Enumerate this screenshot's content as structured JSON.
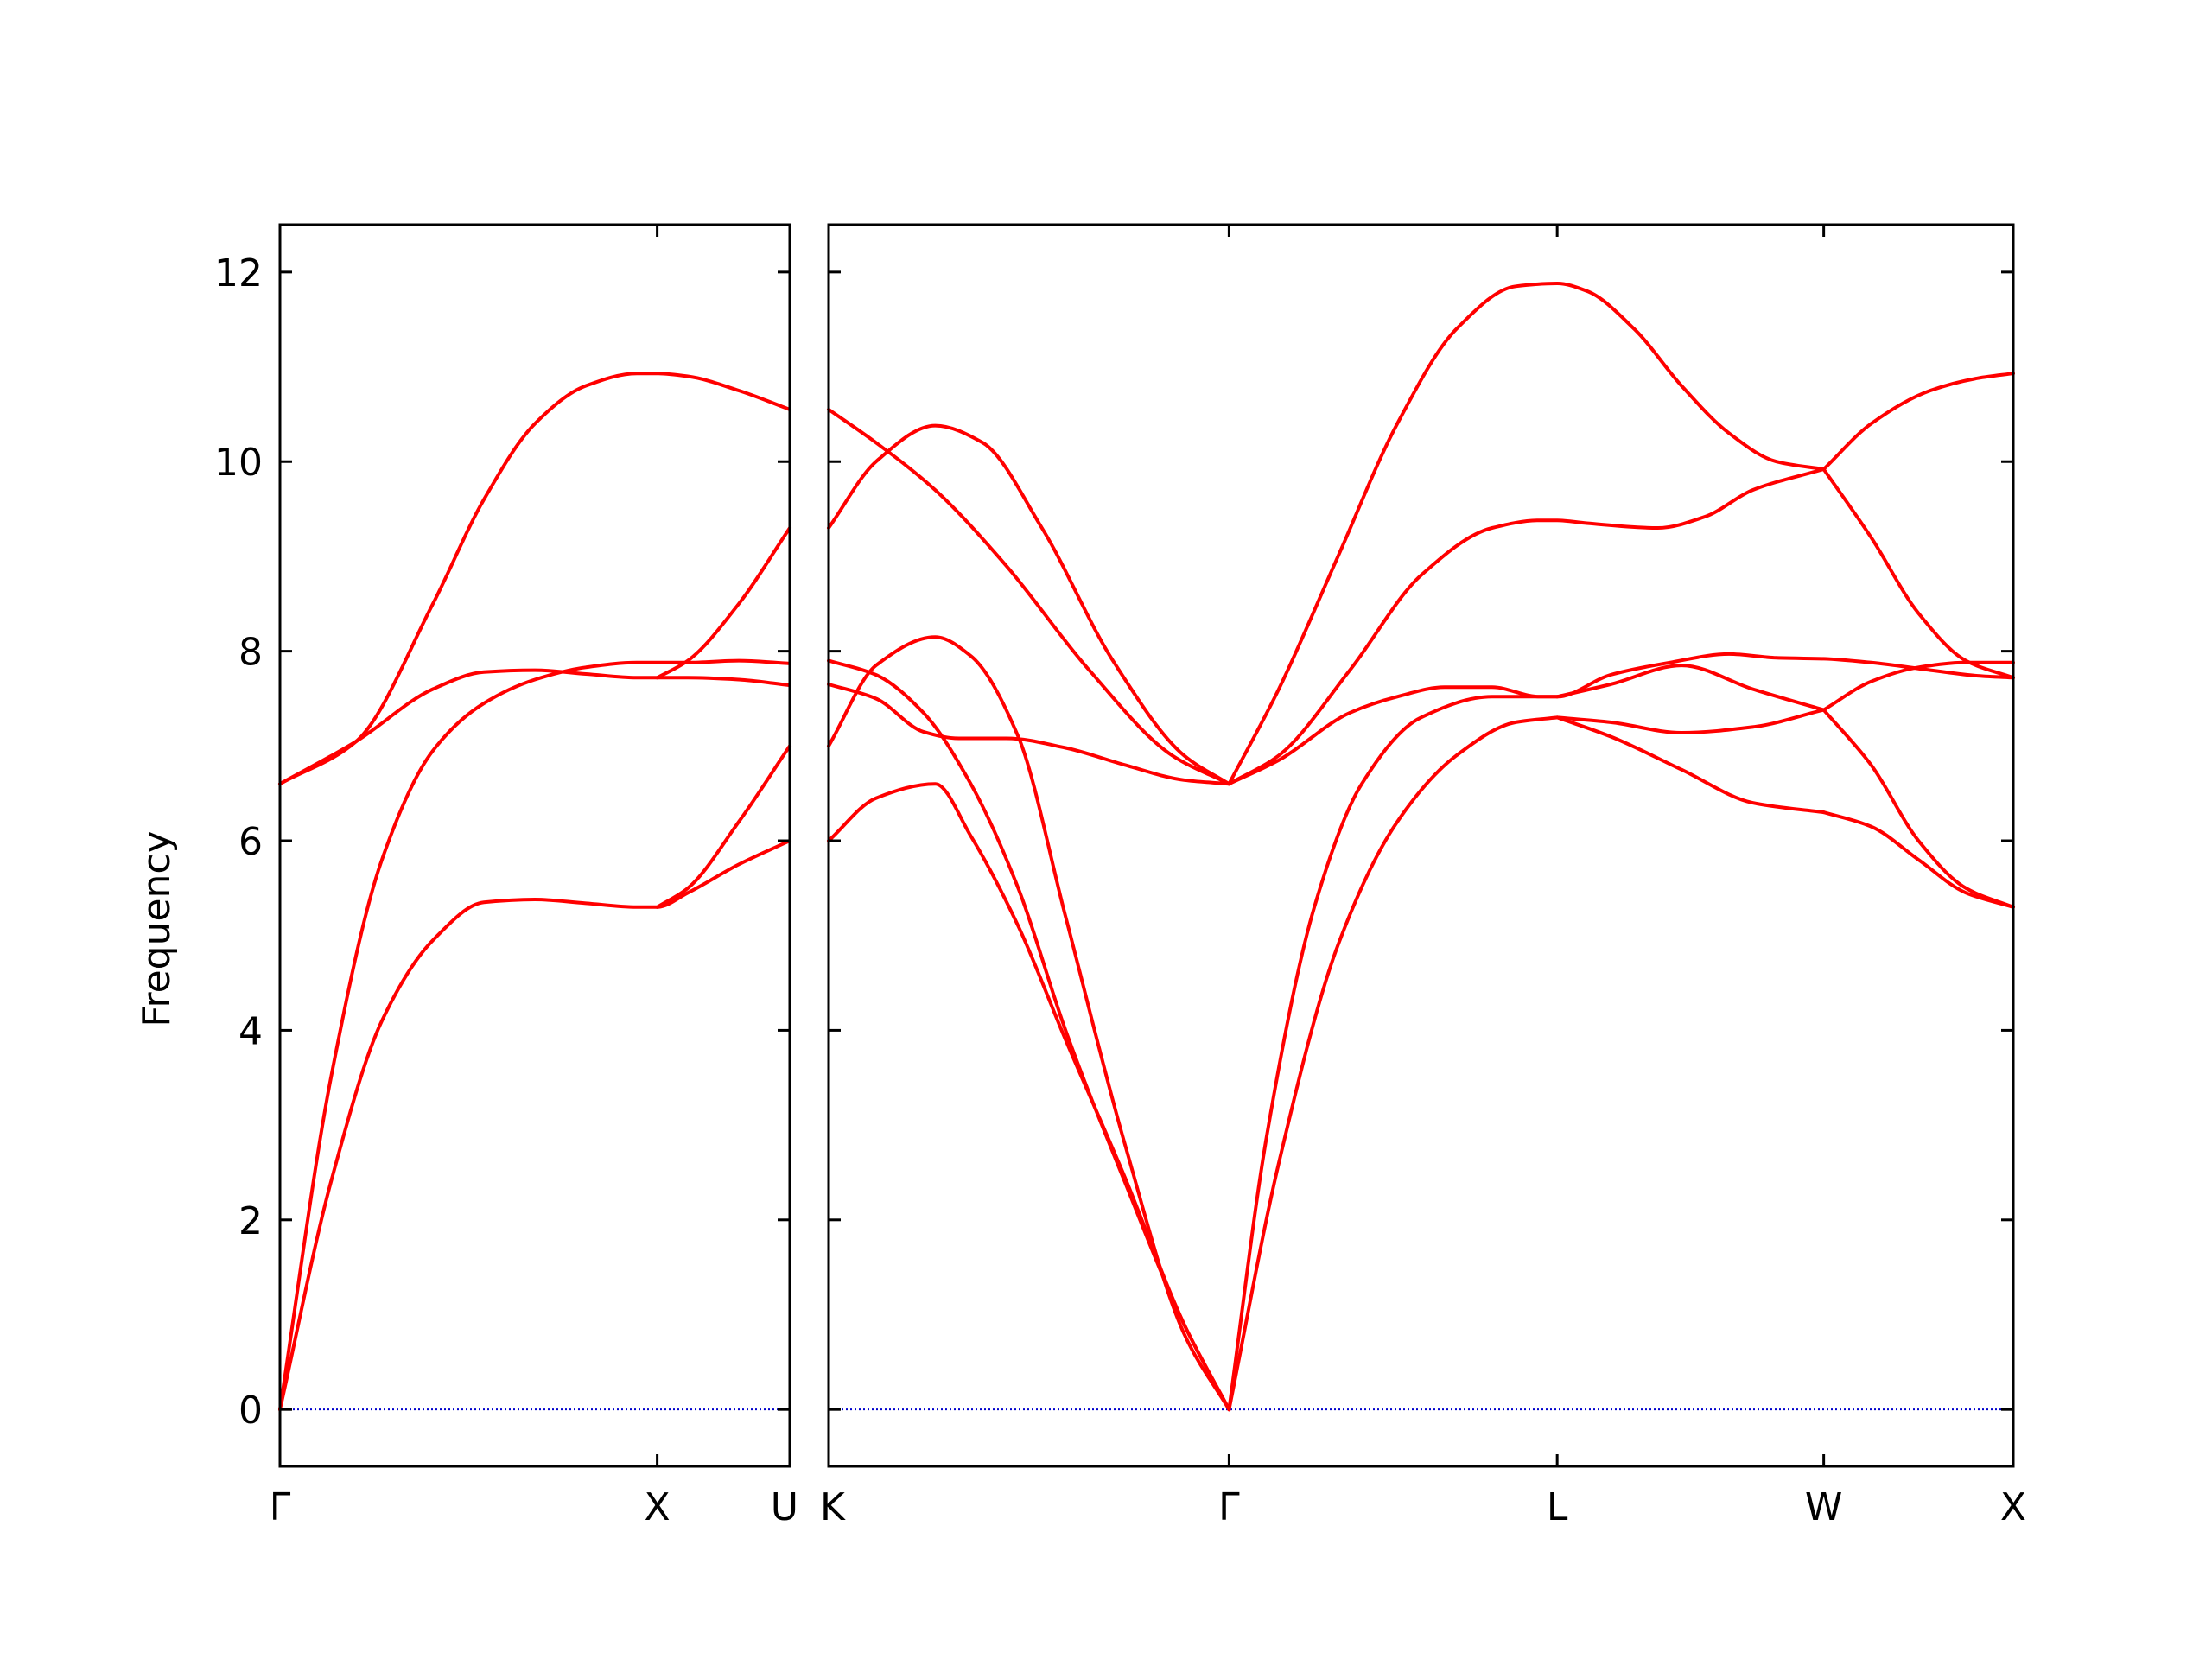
{
  "chart_data": {
    "type": "line",
    "title": "",
    "ylabel": "Frequency",
    "xlabel": "",
    "ylim": [
      -0.6,
      12.5
    ],
    "yticks": [
      0,
      2,
      4,
      6,
      8,
      10,
      12
    ],
    "ytick_labels": [
      "0",
      "2",
      "4",
      "6",
      "8",
      "10",
      "12"
    ],
    "grid": false,
    "line_color": "#ff0000",
    "zero_line_color": "#0000cc",
    "panels": [
      {
        "xlim": [
          0,
          1
        ],
        "ticks": [
          {
            "x": 0,
            "label": "Γ"
          },
          {
            "x": 0.74,
            "label": "X"
          },
          {
            "x": 1,
            "label": "U"
          }
        ],
        "branches": [
          {
            "x": [
              0,
              0.15,
              0.3,
              0.4,
              0.5,
              0.6,
              0.7,
              0.74,
              0.8,
              0.9,
              1
            ],
            "y": [
              6.6,
              7.05,
              7.6,
              7.78,
              7.8,
              7.76,
              7.72,
              7.72,
              7.72,
              7.7,
              7.64
            ]
          },
          {
            "x": [
              0,
              0.15,
              0.3,
              0.4,
              0.5,
              0.6,
              0.7,
              0.74,
              0.8,
              0.9,
              1
            ],
            "y": [
              6.6,
              7.05,
              8.5,
              9.6,
              10.4,
              10.8,
              10.93,
              10.93,
              10.9,
              10.75,
              10.55
            ]
          },
          {
            "x": [
              0,
              0.1,
              0.2,
              0.3,
              0.4,
              0.5,
              0.6,
              0.7,
              0.74,
              0.8,
              0.9,
              1
            ],
            "y": [
              0,
              3.5,
              5.8,
              6.95,
              7.45,
              7.7,
              7.83,
              7.88,
              7.88,
              7.88,
              7.9,
              7.87
            ]
          },
          {
            "x": [
              0,
              0.1,
              0.2,
              0.3,
              0.4,
              0.5,
              0.6,
              0.7,
              0.74,
              0.8,
              0.9,
              1
            ],
            "y": [
              0,
              2.4,
              4.1,
              4.95,
              5.35,
              5.38,
              5.34,
              5.3,
              5.3,
              5.45,
              5.75,
              6.0
            ]
          },
          {
            "x": [
              0.74,
              0.8,
              0.9,
              1
            ],
            "y": [
              7.72,
              7.9,
              8.5,
              9.3
            ]
          },
          {
            "x": [
              0.74,
              0.8,
              0.9,
              1
            ],
            "y": [
              5.3,
              5.5,
              6.2,
              7.0
            ]
          }
        ]
      },
      {
        "xlim": [
          0,
          1
        ],
        "ticks": [
          {
            "x": 0,
            "label": "K"
          },
          {
            "x": 0.338,
            "label": "Γ"
          },
          {
            "x": 0.615,
            "label": "L"
          },
          {
            "x": 0.84,
            "label": "W"
          },
          {
            "x": 1,
            "label": "X"
          }
        ],
        "branches": [
          {
            "x": [
              0,
              0.04,
              0.09,
              0.15,
              0.22,
              0.29,
              0.338
            ],
            "y": [
              10.55,
              10.2,
              9.7,
              8.9,
              7.8,
              6.9,
              6.6
            ]
          },
          {
            "x": [
              0,
              0.04,
              0.09,
              0.13,
              0.18,
              0.24,
              0.3,
              0.338
            ],
            "y": [
              9.3,
              10.0,
              10.38,
              10.2,
              9.3,
              7.9,
              6.9,
              6.6
            ]
          },
          {
            "x": [
              0,
              0.04,
              0.08,
              0.11,
              0.15,
              0.2,
              0.25,
              0.3,
              0.338
            ],
            "y": [
              7.65,
              7.5,
              7.15,
              7.08,
              7.08,
              6.98,
              6.8,
              6.64,
              6.6
            ]
          },
          {
            "x": [
              0,
              0.04,
              0.08,
              0.12,
              0.16,
              0.2,
              0.25,
              0.3,
              0.338
            ],
            "y": [
              7.9,
              7.75,
              7.35,
              6.6,
              5.5,
              4.0,
              2.4,
              0.9,
              0
            ]
          },
          {
            "x": [
              0,
              0.04,
              0.09,
              0.12,
              0.16,
              0.2,
              0.25,
              0.3,
              0.338
            ],
            "y": [
              7.0,
              7.85,
              8.15,
              7.95,
              7.1,
              5.2,
              2.8,
              0.8,
              0
            ]
          },
          {
            "x": [
              0,
              0.04,
              0.09,
              0.12,
              0.16,
              0.2,
              0.25,
              0.3,
              0.338
            ],
            "y": [
              6.0,
              6.45,
              6.6,
              6.05,
              5.1,
              3.9,
              2.45,
              0.9,
              0
            ]
          },
          {
            "x": [
              0.338,
              0.38,
              0.44,
              0.48,
              0.52,
              0.56,
              0.6,
              0.615,
              0.66,
              0.71,
              0.76,
              0.8,
              0.84,
              0.88,
              0.93,
              0.97,
              1
            ],
            "y": [
              6.6,
              6.85,
              7.35,
              7.52,
              7.62,
              7.62,
              7.52,
              7.52,
              7.75,
              7.88,
              7.97,
              7.93,
              7.92,
              7.88,
              7.8,
              7.74,
              7.72
            ]
          },
          {
            "x": [
              0.338,
              0.38,
              0.44,
              0.5,
              0.56,
              0.6,
              0.615,
              0.64,
              0.7,
              0.74,
              0.78,
              0.84
            ],
            "y": [
              6.6,
              6.9,
              7.8,
              8.8,
              9.3,
              9.38,
              9.38,
              9.35,
              9.3,
              9.42,
              9.7,
              9.92
            ]
          },
          {
            "x": [
              0.338,
              0.38,
              0.43,
              0.48,
              0.53,
              0.58,
              0.615,
              0.64,
              0.68,
              0.72,
              0.76,
              0.8,
              0.84
            ],
            "y": [
              6.6,
              7.6,
              9.0,
              10.4,
              11.4,
              11.85,
              11.88,
              11.8,
              11.4,
              10.8,
              10.3,
              10.0,
              9.92
            ]
          },
          {
            "x": [
              0.338,
              0.38,
              0.43,
              0.48,
              0.53,
              0.58,
              0.615
            ],
            "y": [
              0,
              2.6,
              4.9,
              6.2,
              6.9,
              7.25,
              7.3
            ]
          },
          {
            "x": [
              0.338,
              0.37,
              0.41,
              0.45,
              0.5,
              0.56,
              0.615
            ],
            "y": [
              0,
              2.9,
              5.3,
              6.6,
              7.3,
              7.52,
              7.52
            ]
          },
          {
            "x": [
              0.615,
              0.66,
              0.72,
              0.78,
              0.84
            ],
            "y": [
              7.3,
              7.25,
              7.14,
              7.2,
              7.38
            ]
          },
          {
            "x": [
              0.615,
              0.66,
              0.72,
              0.78,
              0.84
            ],
            "y": [
              7.3,
              7.1,
              6.75,
              6.4,
              6.3
            ]
          },
          {
            "x": [
              0.615,
              0.66,
              0.72,
              0.78,
              0.84
            ],
            "y": [
              7.52,
              7.65,
              7.85,
              7.6,
              7.38
            ]
          },
          {
            "x": [
              0.84,
              0.88,
              0.93,
              0.97,
              1
            ],
            "y": [
              9.92,
              10.4,
              10.75,
              10.88,
              10.93
            ]
          },
          {
            "x": [
              0.84,
              0.88,
              0.92,
              0.96,
              1
            ],
            "y": [
              9.92,
              9.2,
              8.4,
              7.9,
              7.72
            ]
          },
          {
            "x": [
              0.84,
              0.88,
              0.92,
              0.96,
              1
            ],
            "y": [
              7.38,
              7.68,
              7.83,
              7.88,
              7.88
            ]
          },
          {
            "x": [
              0.84,
              0.88,
              0.92,
              0.96,
              1
            ],
            "y": [
              7.38,
              6.8,
              6.0,
              5.5,
              5.3
            ]
          },
          {
            "x": [
              0.84,
              0.88,
              0.92,
              0.96,
              1
            ],
            "y": [
              6.3,
              6.15,
              5.8,
              5.45,
              5.3
            ]
          }
        ]
      }
    ]
  }
}
